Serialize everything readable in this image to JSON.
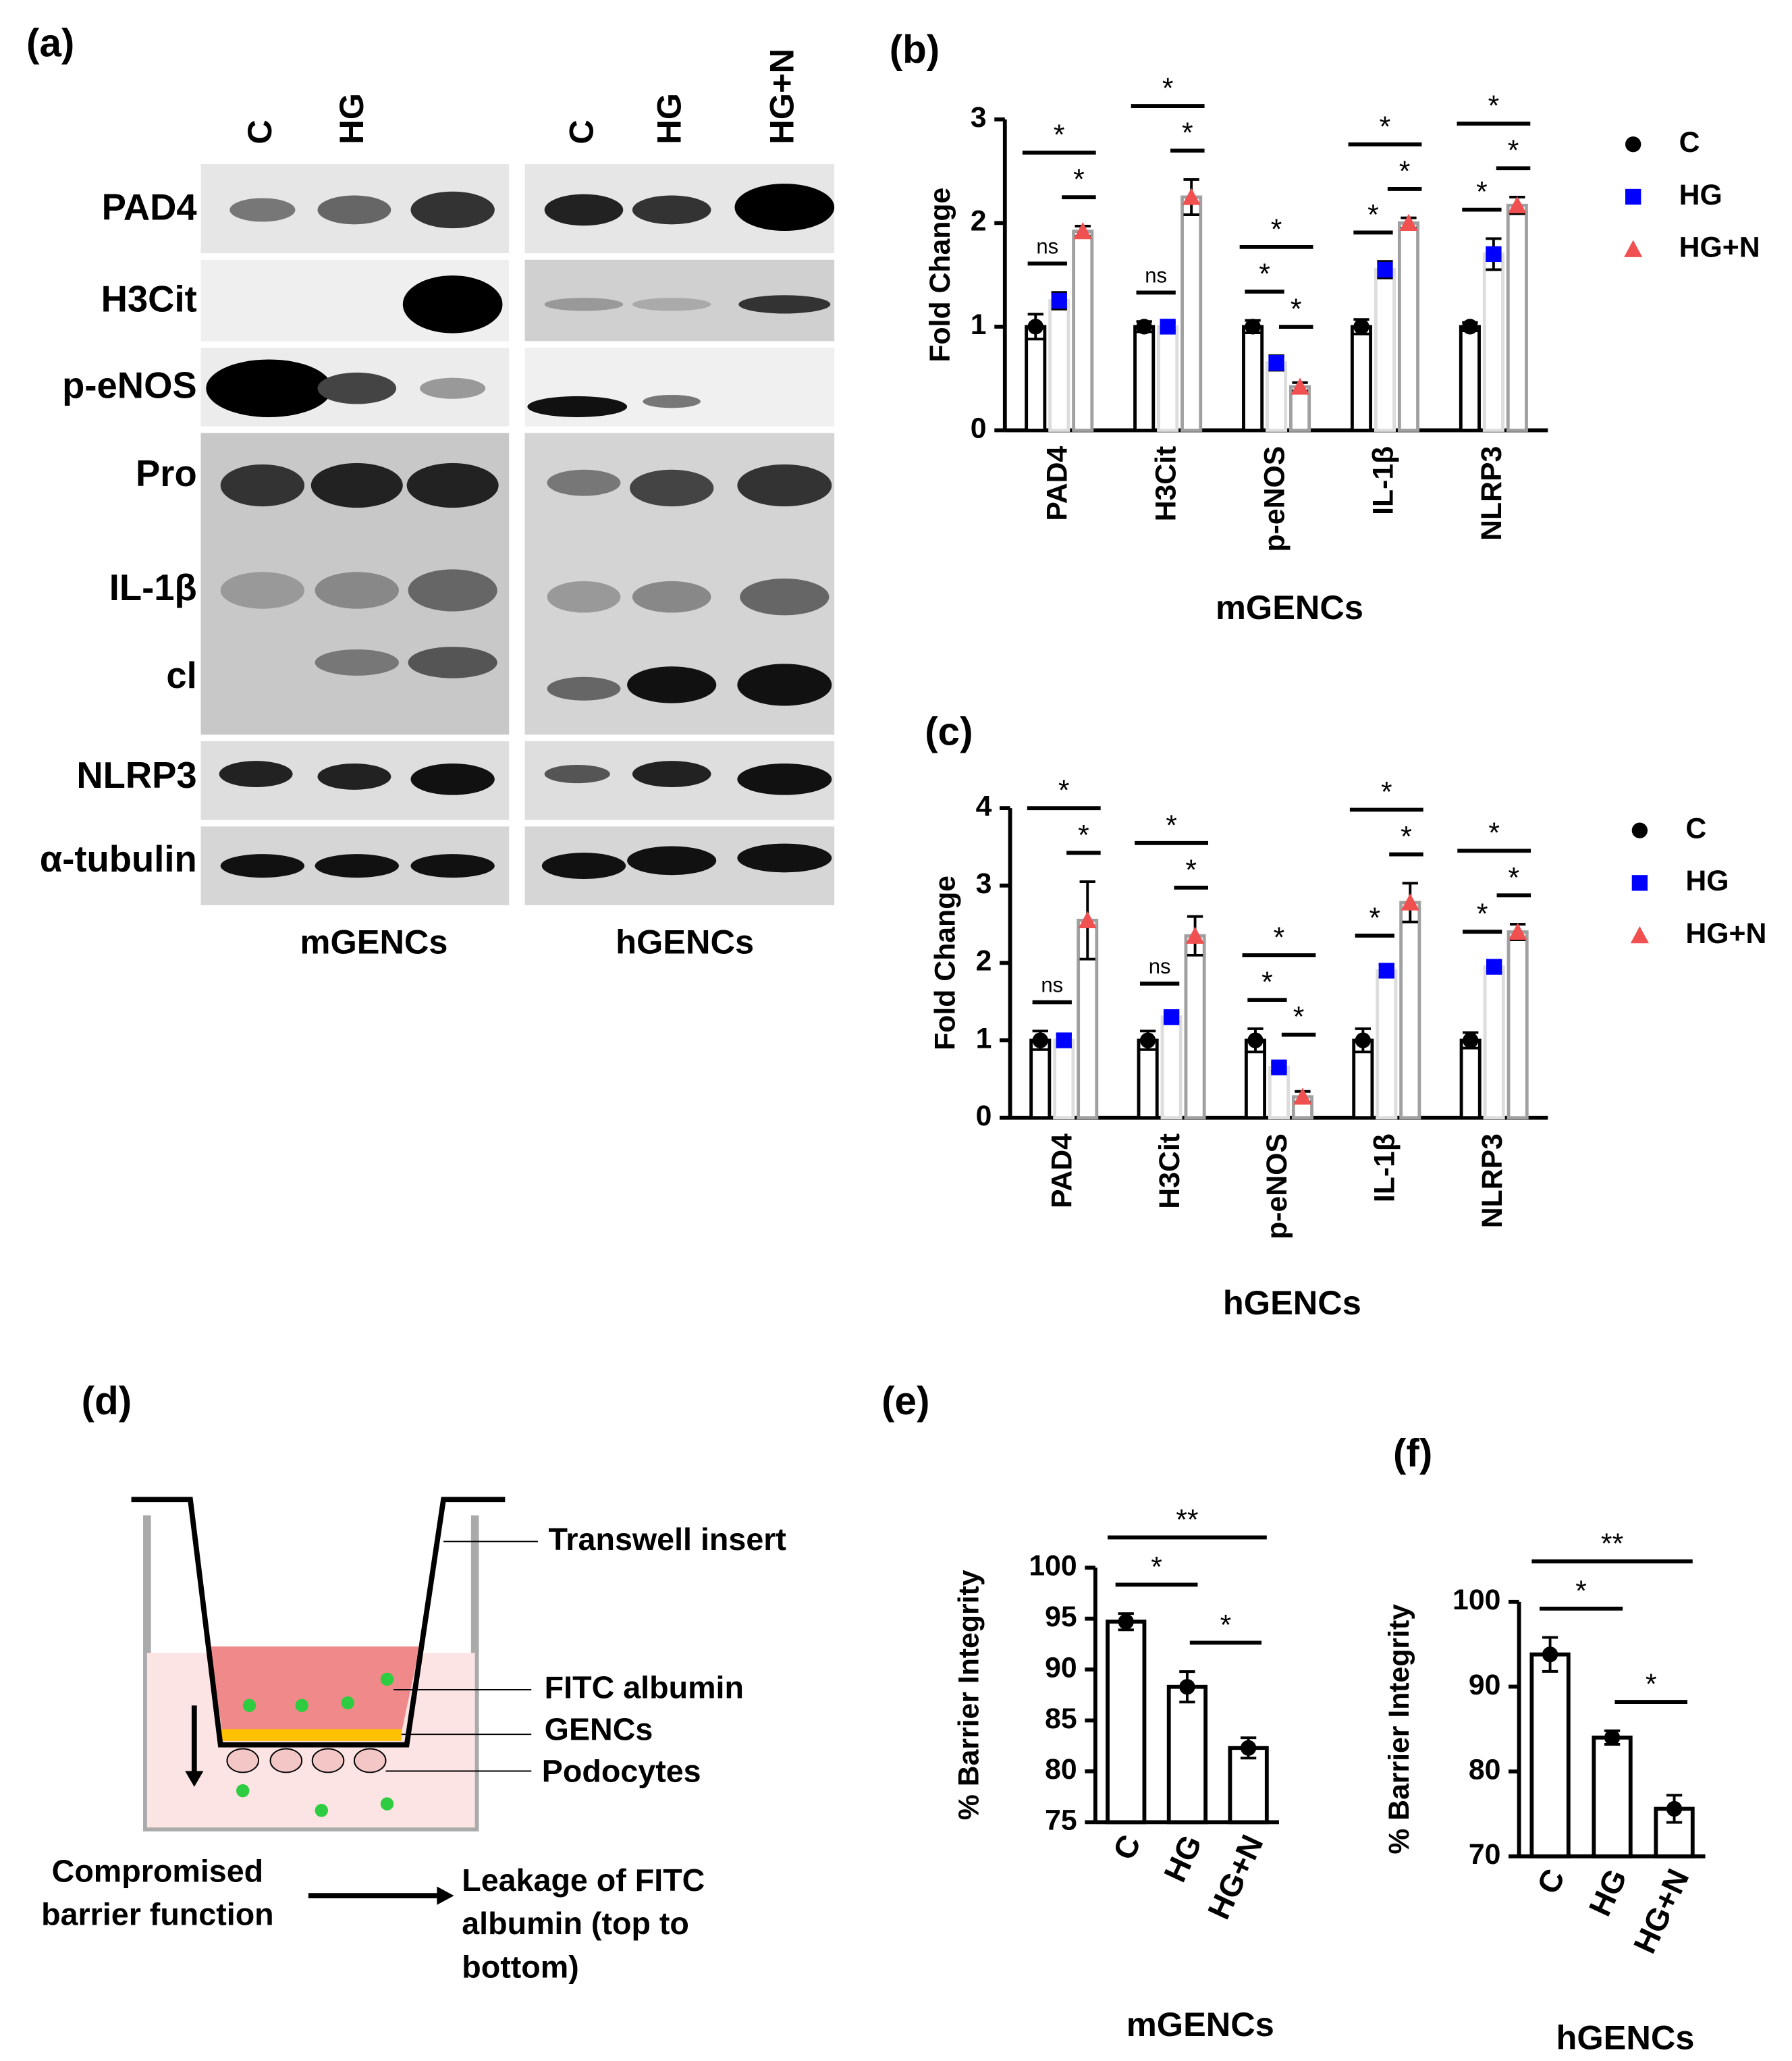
{
  "blot": {
    "panel": "(a)",
    "lanes": [
      "C",
      "HG",
      "C",
      "HG",
      "HG+N"
    ],
    "rows": [
      "PAD4",
      "H3Cit",
      "p-eNOS",
      "Pro",
      "IL-1β",
      "cl",
      "NLRP3",
      "α-tubulin"
    ],
    "groups": [
      "mGENCs",
      "hGENCs"
    ]
  },
  "diagram": {
    "panel": "(d)",
    "labels": [
      "Transwell insert",
      "FITC albumin",
      "GENCs",
      "Podocytes"
    ],
    "left_caption": [
      "Compromised",
      "barrier function"
    ],
    "right_caption": [
      "Leakage of FITC",
      "albumin (top to",
      "bottom)"
    ]
  },
  "chart_data": [
    {
      "panel": "(b)",
      "type": "bar",
      "x_label": "mGENCs",
      "y_label": "Fold Change",
      "categories": [
        "PAD4",
        "H3Cit",
        "p-eNOS",
        "IL-1β",
        "NLRP3"
      ],
      "series": [
        {
          "name": "C",
          "color": "#000000",
          "edge": "#000000",
          "marker": "circle",
          "values": [
            1,
            1,
            1,
            1,
            1
          ],
          "errors": [
            0.12,
            0.05,
            0.06,
            0.07,
            0.04
          ]
        },
        {
          "name": "HG",
          "color": "#0000ff",
          "edge": "#dddddd",
          "marker": "square",
          "values": [
            1.25,
            1.0,
            0.65,
            1.55,
            1.7
          ],
          "errors": [
            0.08,
            0.04,
            0.07,
            0.08,
            0.15
          ]
        },
        {
          "name": "HG+N",
          "color": "#f05050",
          "edge": "#a0a0a0",
          "marker": "triangle",
          "values": [
            1.92,
            2.25,
            0.42,
            2.0,
            2.17
          ],
          "errors": [
            0.05,
            0.17,
            0.04,
            0.05,
            0.08
          ]
        }
      ],
      "ylim": [
        0,
        3
      ],
      "yticks": [
        0,
        1,
        2,
        3
      ],
      "legend": "right",
      "significance": [
        [
          "ns",
          "*",
          "*"
        ],
        [
          "ns",
          "*",
          "*"
        ],
        [
          "*",
          "*",
          "*"
        ],
        [
          "*",
          "*",
          "*"
        ],
        [
          "*",
          "*",
          "*"
        ]
      ]
    },
    {
      "panel": "(c)",
      "type": "bar",
      "x_label": "hGENCs",
      "y_label": "Fold Change",
      "categories": [
        "PAD4",
        "H3Cit",
        "p-eNOS",
        "IL-1β",
        "NLRP3"
      ],
      "series": [
        {
          "name": "C",
          "color": "#000000",
          "edge": "#000000",
          "marker": "circle",
          "values": [
            1,
            1,
            1,
            1,
            1
          ],
          "errors": [
            0.12,
            0.12,
            0.15,
            0.15,
            0.1
          ]
        },
        {
          "name": "HG",
          "color": "#0000ff",
          "edge": "#dddddd",
          "marker": "square",
          "values": [
            1.0,
            1.3,
            0.65,
            1.9,
            1.95
          ],
          "errors": [
            0.08,
            0.06,
            0.05,
            0.08,
            0.08
          ]
        },
        {
          "name": "HG+N",
          "color": "#f05050",
          "edge": "#a0a0a0",
          "marker": "triangle",
          "values": [
            2.55,
            2.35,
            0.27,
            2.78,
            2.4
          ],
          "errors": [
            0.5,
            0.25,
            0.07,
            0.25,
            0.1
          ]
        }
      ],
      "ylim": [
        0,
        4
      ],
      "yticks": [
        0,
        1,
        2,
        3,
        4
      ],
      "legend": "right",
      "significance": [
        [
          "ns",
          "*",
          "*"
        ],
        [
          "ns",
          "*",
          "*"
        ],
        [
          "*",
          "*",
          "*"
        ],
        [
          "*",
          "*",
          "*"
        ],
        [
          "*",
          "*",
          "*"
        ]
      ]
    },
    {
      "panel": "(e)",
      "type": "bar",
      "x_label": "mGENCs",
      "y_label": "% Barrier Integrity",
      "categories": [
        "C",
        "HG",
        "HG+N"
      ],
      "values": [
        94.7,
        88.3,
        82.3
      ],
      "errors": [
        0.8,
        1.5,
        1.0
      ],
      "color": "#000000",
      "ylim": [
        75,
        100
      ],
      "yticks": [
        75,
        80,
        85,
        90,
        95,
        100
      ],
      "significance": [
        "*",
        "*",
        "**"
      ]
    },
    {
      "panel": "(f)",
      "type": "bar",
      "x_label": "hGENCs",
      "y_label": "% Barrier Integrity",
      "categories": [
        "C",
        "HG",
        "HG+N"
      ],
      "values": [
        93.8,
        84.0,
        75.6
      ],
      "errors": [
        2.0,
        0.8,
        1.6
      ],
      "color": "#000000",
      "ylim": [
        70,
        100
      ],
      "yticks": [
        70,
        80,
        90,
        100
      ],
      "significance": [
        "*",
        "*",
        "**"
      ]
    }
  ]
}
